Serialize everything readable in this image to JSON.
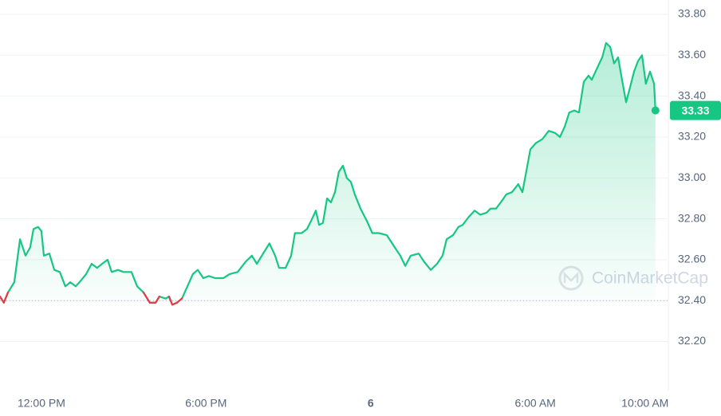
{
  "chart_data": {
    "type": "line",
    "x": [
      -1.51,
      -1.37,
      -1.22,
      -0.99,
      -0.78,
      -0.58,
      -0.41,
      -0.29,
      -0.12,
      0,
      0.09,
      0.29,
      0.47,
      0.67,
      0.87,
      1.05,
      1.25,
      1.45,
      1.63,
      1.83,
      2.03,
      2.21,
      2.41,
      2.56,
      2.79,
      2.99,
      3.28,
      3.49,
      3.72,
      3.95,
      4.16,
      4.3,
      4.53,
      4.65,
      4.77,
      4.94,
      5.12,
      5.32,
      5.52,
      5.7,
      5.9,
      6.1,
      6.34,
      6.63,
      6.86,
      7.15,
      7.44,
      7.67,
      7.85,
      8.08,
      8.31,
      8.52,
      8.66,
      8.9,
      9.1,
      9.24,
      9.48,
      9.68,
      9.83,
      10.0,
      10.12,
      10.26,
      10.41,
      10.55,
      10.7,
      10.84,
      10.99,
      11.13,
      11.28,
      11.42,
      11.63,
      11.86,
      12.06,
      12.3,
      12.59,
      12.88,
      13.08,
      13.26,
      13.46,
      13.75,
      13.95,
      14.19,
      14.42,
      14.62,
      14.77,
      15.0,
      15.2,
      15.35,
      15.58,
      15.79,
      15.99,
      16.22,
      16.37,
      16.57,
      16.74,
      16.95,
      17.15,
      17.38,
      17.53,
      17.67,
      17.82,
      18.02,
      18.26,
      18.49,
      18.72,
      18.9,
      19.07,
      19.24,
      19.42,
      19.59,
      19.77,
      19.94,
      20.06,
      20.23,
      20.44,
      20.58,
      20.73,
      20.87,
      21.02,
      21.16,
      21.31,
      21.45,
      21.6,
      21.74,
      21.89,
      22.03,
      22.18,
      22.33,
      22.38
    ],
    "values": [
      32.42,
      32.39,
      32.44,
      32.49,
      32.7,
      32.62,
      32.66,
      32.75,
      32.76,
      32.74,
      32.62,
      32.63,
      32.55,
      32.54,
      32.47,
      32.49,
      32.47,
      32.5,
      32.53,
      32.58,
      32.56,
      32.58,
      32.6,
      32.54,
      32.55,
      32.54,
      32.54,
      32.47,
      32.44,
      32.39,
      32.39,
      32.42,
      32.41,
      32.42,
      32.38,
      32.39,
      32.41,
      32.47,
      32.53,
      32.55,
      32.51,
      32.52,
      32.51,
      32.51,
      32.53,
      32.54,
      32.59,
      32.62,
      32.58,
      32.63,
      32.68,
      32.62,
      32.56,
      32.56,
      32.62,
      32.73,
      32.73,
      32.75,
      32.79,
      32.84,
      32.77,
      32.78,
      32.9,
      32.88,
      32.93,
      33.03,
      33.06,
      33.0,
      32.98,
      32.92,
      32.85,
      32.79,
      32.73,
      32.73,
      32.72,
      32.66,
      32.62,
      32.57,
      32.62,
      32.63,
      32.59,
      32.55,
      32.58,
      32.62,
      32.7,
      32.72,
      32.76,
      32.77,
      32.81,
      32.84,
      32.82,
      32.83,
      32.85,
      32.85,
      32.88,
      32.92,
      32.93,
      32.97,
      32.93,
      33.03,
      33.14,
      33.17,
      33.19,
      33.23,
      33.22,
      33.2,
      33.25,
      33.32,
      33.33,
      33.32,
      33.47,
      33.5,
      33.48,
      33.53,
      33.59,
      33.66,
      33.64,
      33.56,
      33.59,
      33.48,
      33.37,
      33.44,
      33.52,
      33.57,
      33.6,
      33.46,
      33.52,
      33.46,
      33.33
    ],
    "color": "#16c784",
    "down_color": "#ea3943",
    "baseline": 32.4,
    "xlim": [
      -1.51,
      22.85
    ],
    "xticks": [
      {
        "value": 0,
        "label": "12:00 PM"
      },
      {
        "value": 6,
        "label": "6:00 PM"
      },
      {
        "value": 12,
        "label": "6"
      },
      {
        "value": 18,
        "label": "6:00 AM"
      },
      {
        "value": 22,
        "label": "10:00 AM"
      }
    ],
    "ylim": [
      31.98,
      33.87
    ],
    "yticks": [
      {
        "value": 32.2,
        "label": "32.20"
      },
      {
        "value": 32.4,
        "label": "32.40"
      },
      {
        "value": 32.6,
        "label": "32.60"
      },
      {
        "value": 32.8,
        "label": "32.80"
      },
      {
        "value": 33.0,
        "label": "33.00"
      },
      {
        "value": 33.2,
        "label": "33.20"
      },
      {
        "value": 33.4,
        "label": "33.40"
      },
      {
        "value": 33.6,
        "label": "33.60"
      },
      {
        "value": 33.8,
        "label": "33.80"
      }
    ],
    "grid": true,
    "last_value_label": "33.33",
    "watermark": "CoinMarketCap"
  }
}
